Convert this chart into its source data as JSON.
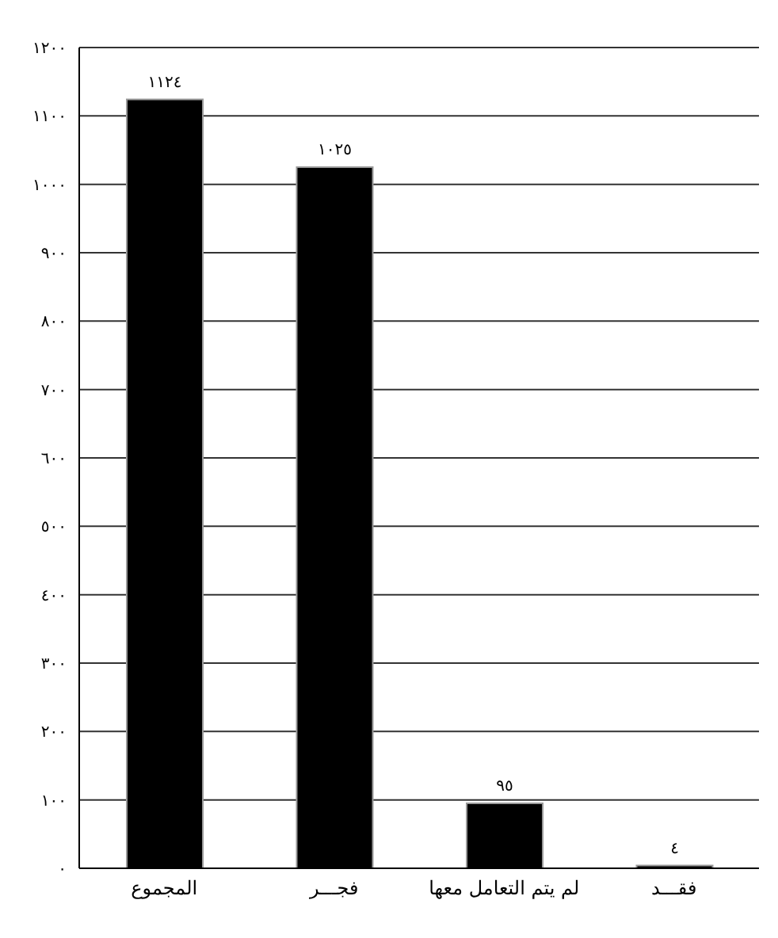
{
  "chart_data": {
    "type": "bar",
    "categories": [
      "المجموع",
      "فجـــر",
      "لم يتم التعامل معها",
      "فقـــد"
    ],
    "values": [
      1124,
      1025,
      95,
      4
    ],
    "value_labels": [
      "١١٢٤",
      "١٠٢٥",
      "٩٥",
      "٤"
    ],
    "color": "#000000",
    "ylim": [
      0,
      1200
    ],
    "yticks": [
      {
        "value": 0,
        "label": "٠"
      },
      {
        "value": 100,
        "label": "١٠٠"
      },
      {
        "value": 200,
        "label": "٢٠٠"
      },
      {
        "value": 300,
        "label": "٣٠٠"
      },
      {
        "value": 400,
        "label": "٤٠٠"
      },
      {
        "value": 500,
        "label": "٥٠٠"
      },
      {
        "value": 600,
        "label": "٦٠٠"
      },
      {
        "value": 700,
        "label": "٧٠٠"
      },
      {
        "value": 800,
        "label": "٨٠٠"
      },
      {
        "value": 900,
        "label": "٩٠٠"
      },
      {
        "value": 1000,
        "label": "١٠٠٠"
      },
      {
        "value": 1100,
        "label": "١١٠٠"
      },
      {
        "value": 1200,
        "label": "١٢٠٠"
      }
    ],
    "grid": "y"
  }
}
